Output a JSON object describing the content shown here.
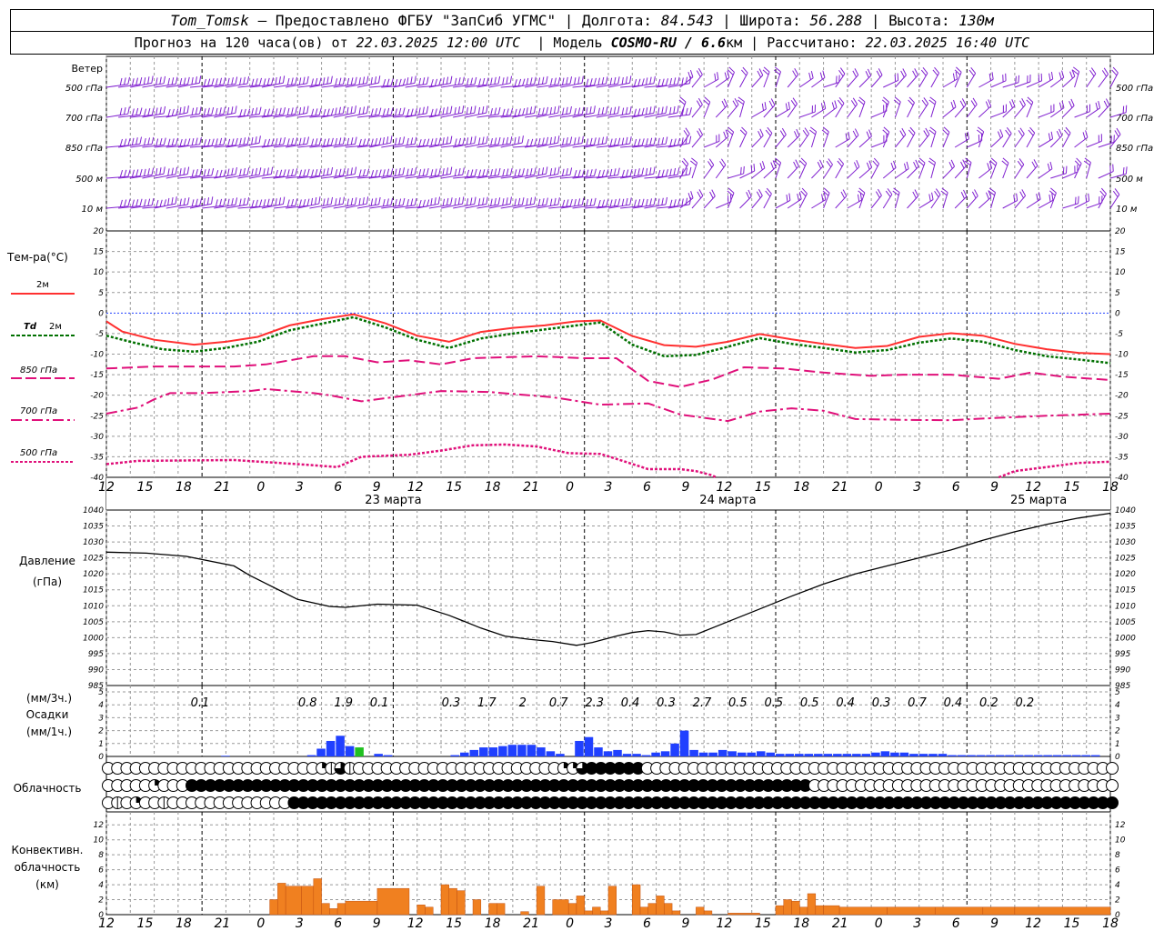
{
  "header": {
    "station": "Tom_Tomsk",
    "provider": " — Предоставлено ФГБУ \"ЗапСиб УГМС\" | Долгота: ",
    "lon": "84.543",
    "lat_label": " | Широта: ",
    "lat": "56.288",
    "alt_label": " | Высота: ",
    "alt": "130м",
    "forecast_label": "Прогноз на 120 часа(ов) от ",
    "forecast_time": "22.03.2025 12:00 UTC",
    "model_label": "  | Модель ",
    "model": "COSMO-RU / 6.6",
    "model_unit": "км",
    "calc_label": " | Рассчитано: ",
    "calc_time": "22.03.2025 16:40 UTC"
  },
  "colors": {
    "t2m": "#ff3030",
    "td2m": "#007000",
    "t850": "#e0107a",
    "t700": "#e0107a",
    "t500": "#e0107a",
    "zero": "#2040ff",
    "barb": "#8020d0",
    "precip": "#2040ff",
    "precip_green": "#20c020",
    "conv": "#f08020",
    "pressure": "#000000"
  },
  "labels": {
    "wind": "Ветер",
    "wind_levels": [
      "500 гПа",
      "700 гПа",
      "850 гПа",
      "500  м",
      "10  м"
    ],
    "temp_title": "Тем-ра(°C)",
    "t2m": "2м",
    "td_prefix": "Td",
    "td2m": "2м",
    "t850": "850 гПа",
    "t700": "700 гПа",
    "t500": "500 гПа",
    "pressure": "Давление",
    "pressure_unit": "(гПа)",
    "precip_top": "(мм/3ч.)",
    "precip": "Осадки",
    "precip_bottom": "(мм/1ч.)",
    "cloud": "Облачность",
    "conv1": "Конвективн.",
    "conv2": "облачность",
    "conv3": "(км)"
  },
  "chart_data": {
    "type": "line",
    "x_hours": "0..126 (hours from 22.03.2025 12:00 UTC)",
    "hour_ticks": [
      "12",
      "15",
      "18",
      "21",
      "0",
      "3",
      "6",
      "9",
      "12",
      "15",
      "18",
      "21",
      "0",
      "3",
      "6",
      "9",
      "12",
      "15",
      "18",
      "21",
      "0",
      "3",
      "6",
      "9",
      "12",
      "15",
      "18"
    ],
    "day_labels": [
      {
        "h": 36,
        "text": "23 марта"
      },
      {
        "h": 78,
        "text": "24 марта"
      },
      {
        "h": 117,
        "text": "25 марта"
      }
    ],
    "temperature": {
      "ylim": [
        -40,
        20
      ],
      "ticks": [
        "20",
        "15",
        "10",
        "5",
        "0",
        "-5",
        "-10",
        "-15",
        "-20",
        "-25",
        "-30",
        "-35",
        "-40"
      ],
      "t2m": [
        [
          0,
          -2
        ],
        [
          2,
          -4.5
        ],
        [
          6,
          -6.5
        ],
        [
          11,
          -7.7
        ],
        [
          15,
          -7
        ],
        [
          19,
          -5.8
        ],
        [
          23,
          -3
        ],
        [
          27,
          -1.5
        ],
        [
          31,
          -0.3
        ],
        [
          35,
          -2.5
        ],
        [
          39,
          -5.5
        ],
        [
          43,
          -7
        ],
        [
          47,
          -4.6
        ],
        [
          51,
          -3.6
        ],
        [
          55,
          -3
        ],
        [
          59,
          -2
        ],
        [
          62,
          -1.8
        ],
        [
          66,
          -5.6
        ],
        [
          70,
          -7.8
        ],
        [
          74,
          -8.2
        ],
        [
          78,
          -7
        ],
        [
          82,
          -5.1
        ],
        [
          86,
          -6.4
        ],
        [
          90,
          -7.5
        ],
        [
          94,
          -8.5
        ],
        [
          98,
          -8
        ],
        [
          102,
          -5.8
        ],
        [
          106,
          -4.9
        ],
        [
          110,
          -5.5
        ],
        [
          114,
          -7.5
        ],
        [
          118,
          -8.8
        ],
        [
          122,
          -9.7
        ],
        [
          126,
          -10
        ]
      ],
      "td2m": [
        [
          0,
          -5.5
        ],
        [
          3,
          -7
        ],
        [
          7,
          -8.8
        ],
        [
          11,
          -9.4
        ],
        [
          15,
          -8.5
        ],
        [
          19,
          -7
        ],
        [
          23,
          -4.2
        ],
        [
          27,
          -2.6
        ],
        [
          31,
          -1
        ],
        [
          35,
          -3.5
        ],
        [
          39,
          -6.5
        ],
        [
          43,
          -8.5
        ],
        [
          47,
          -6.2
        ],
        [
          51,
          -5
        ],
        [
          55,
          -4
        ],
        [
          59,
          -3
        ],
        [
          62,
          -2.3
        ],
        [
          66,
          -7.7
        ],
        [
          70,
          -10.5
        ],
        [
          74,
          -10.2
        ],
        [
          78,
          -8.2
        ],
        [
          82,
          -6.1
        ],
        [
          86,
          -7.5
        ],
        [
          90,
          -8.5
        ],
        [
          94,
          -9.6
        ],
        [
          98,
          -9
        ],
        [
          102,
          -7.2
        ],
        [
          106,
          -6.2
        ],
        [
          110,
          -7
        ],
        [
          114,
          -9
        ],
        [
          118,
          -10.5
        ],
        [
          122,
          -11.3
        ],
        [
          126,
          -12.2
        ]
      ],
      "t850": [
        [
          0,
          -13.5
        ],
        [
          6,
          -13
        ],
        [
          16,
          -13
        ],
        [
          20,
          -12.5
        ],
        [
          26,
          -10.5
        ],
        [
          30,
          -10.5
        ],
        [
          34,
          -12
        ],
        [
          38,
          -11.5
        ],
        [
          42,
          -12.5
        ],
        [
          46,
          -11
        ],
        [
          54,
          -10.5
        ],
        [
          60,
          -11
        ],
        [
          64,
          -11
        ],
        [
          68,
          -16.5
        ],
        [
          72,
          -18
        ],
        [
          76,
          -16.2
        ],
        [
          80,
          -13.2
        ],
        [
          85,
          -13.5
        ],
        [
          90,
          -14.5
        ],
        [
          96,
          -15.3
        ],
        [
          100,
          -15
        ],
        [
          106,
          -15
        ],
        [
          112,
          -16
        ],
        [
          116,
          -14.5
        ],
        [
          120,
          -15.5
        ],
        [
          126,
          -16.3
        ]
      ],
      "t700": [
        [
          0,
          -24.5
        ],
        [
          4,
          -23
        ],
        [
          6,
          -21
        ],
        [
          8,
          -19.5
        ],
        [
          12,
          -19.5
        ],
        [
          18,
          -19
        ],
        [
          20,
          -18.5
        ],
        [
          26,
          -19.5
        ],
        [
          28,
          -20
        ],
        [
          32,
          -21.5
        ],
        [
          36,
          -20.5
        ],
        [
          42,
          -19
        ],
        [
          48,
          -19.2
        ],
        [
          56,
          -20.5
        ],
        [
          62,
          -22.3
        ],
        [
          68,
          -22
        ],
        [
          72,
          -24.7
        ],
        [
          78,
          -26.3
        ],
        [
          82,
          -24
        ],
        [
          86,
          -23.2
        ],
        [
          90,
          -23.8
        ],
        [
          94,
          -25.8
        ],
        [
          100,
          -26
        ],
        [
          106,
          -26.1
        ],
        [
          112,
          -25.5
        ],
        [
          118,
          -25
        ],
        [
          126,
          -24.5
        ]
      ],
      "t500": [
        [
          0,
          -36.8
        ],
        [
          4,
          -36
        ],
        [
          16,
          -35.8
        ],
        [
          24,
          -36.8
        ],
        [
          29,
          -37.5
        ],
        [
          32,
          -35
        ],
        [
          38,
          -34.5
        ],
        [
          42,
          -33.5
        ],
        [
          46,
          -32.2
        ],
        [
          50,
          -32
        ],
        [
          54,
          -32.5
        ],
        [
          58,
          -34.1
        ],
        [
          62,
          -34.3
        ],
        [
          64,
          -35.5
        ],
        [
          68,
          -38
        ],
        [
          72,
          -38
        ],
        [
          74,
          -38.5
        ],
        [
          76,
          -39.5
        ],
        [
          76.5,
          -40
        ]
      ],
      "t500_tail": [
        [
          112,
          -40
        ],
        [
          114,
          -38.5
        ],
        [
          118,
          -37.5
        ],
        [
          122,
          -36.5
        ],
        [
          126,
          -36.2
        ]
      ]
    },
    "pressure": {
      "ylim": [
        985,
        1040
      ],
      "ticks": [
        "1040",
        "1035",
        "1030",
        "1025",
        "1020",
        "1015",
        "1010",
        "1005",
        "1000",
        "995",
        "990",
        "985"
      ],
      "values": [
        [
          0,
          1026.8
        ],
        [
          5,
          1026.5
        ],
        [
          10,
          1025.5
        ],
        [
          16,
          1022.5
        ],
        [
          18,
          1019.5
        ],
        [
          20,
          1017
        ],
        [
          22,
          1014.5
        ],
        [
          24,
          1012
        ],
        [
          28,
          1009.8
        ],
        [
          30,
          1009.5
        ],
        [
          34,
          1010.5
        ],
        [
          39,
          1010.2
        ],
        [
          43,
          1007
        ],
        [
          47,
          1003
        ],
        [
          50,
          1000.5
        ],
        [
          53,
          999.5
        ],
        [
          56,
          998.8
        ],
        [
          59,
          997.6
        ],
        [
          61,
          998.5
        ],
        [
          64,
          1000.5
        ],
        [
          66,
          1001.6
        ],
        [
          68,
          1002.2
        ],
        [
          70,
          1001.8
        ],
        [
          72,
          1000.8
        ],
        [
          74,
          1001
        ],
        [
          78,
          1005
        ],
        [
          82,
          1009
        ],
        [
          86,
          1013
        ],
        [
          90,
          1016.8
        ],
        [
          94,
          1020
        ],
        [
          98,
          1022.5
        ],
        [
          102,
          1025
        ],
        [
          106,
          1027.5
        ],
        [
          110,
          1030.5
        ],
        [
          114,
          1033.2
        ],
        [
          118,
          1035.5
        ],
        [
          122,
          1037.5
        ],
        [
          126,
          1039
        ]
      ]
    },
    "precip": {
      "ylim": [
        0,
        5
      ],
      "ticks": [
        "5",
        "4",
        "3",
        "2",
        "1",
        "0"
      ],
      "labels": [
        {
          "h": 7.5,
          "v": "0.1"
        },
        {
          "h": 16.5,
          "v": "0.8"
        },
        {
          "h": 19.5,
          "v": "1.9"
        },
        {
          "h": 22.5,
          "v": "0.1"
        },
        {
          "h": 28.5,
          "v": "0.3"
        },
        {
          "h": 31.5,
          "v": "1.7"
        },
        {
          "h": 34.5,
          "v": "2"
        },
        {
          "h": 37.5,
          "v": "0.7"
        },
        {
          "h": 40.5,
          "v": "2.3"
        },
        {
          "h": 43.5,
          "v": "0.4"
        },
        {
          "h": 46.5,
          "v": "0.3"
        },
        {
          "h": 49.5,
          "v": "2.7"
        },
        {
          "h": 52.5,
          "v": "0.5"
        },
        {
          "h": 55.5,
          "v": "0.5"
        },
        {
          "h": 58.5,
          "v": "0.5"
        },
        {
          "h": 61.5,
          "v": "0.4"
        },
        {
          "h": 64.5,
          "v": "0.3"
        },
        {
          "h": 67.5,
          "v": "0.7"
        },
        {
          "h": 70.5,
          "v": "0.4"
        },
        {
          "h": 73.5,
          "v": "0.2"
        },
        {
          "h": 76.5,
          "v": "0.2"
        }
      ],
      "hourly": [
        0,
        0,
        0,
        0,
        0,
        0,
        0,
        0,
        0,
        0,
        0,
        0,
        0.05,
        0,
        0,
        0,
        0,
        0,
        0,
        0,
        0,
        0.1,
        0.6,
        1.2,
        1.6,
        0.8,
        0.7,
        0,
        0.2,
        0.1,
        0,
        0,
        0,
        0,
        0,
        0,
        0.1,
        0.3,
        0.5,
        0.7,
        0.7,
        0.8,
        0.9,
        0.9,
        0.9,
        0.7,
        0.4,
        0.2,
        0,
        1.2,
        1.5,
        0.7,
        0.4,
        0.5,
        0.2,
        0.2,
        0.1,
        0.3,
        0.4,
        1.0,
        2.0,
        0.5,
        0.3,
        0.3,
        0.5,
        0.4,
        0.3,
        0.3,
        0.4,
        0.3,
        0.2,
        0.2,
        0.2,
        0.2,
        0.2,
        0.2,
        0.2,
        0.2,
        0.2,
        0.2,
        0.3,
        0.4,
        0.3,
        0.3,
        0.2,
        0.2,
        0.2,
        0.2,
        0.1,
        0.1,
        0.1,
        0.1,
        0.1,
        0.1,
        0.1,
        0.1,
        0.1,
        0.1,
        0.1,
        0.1,
        0.1,
        0.1,
        0.1,
        0.1
      ],
      "green_hour": 26
    },
    "cloud_rows": 3,
    "cloud": [
      "0000000000000000000000012320000000000000000000000113444444000000000000000000000000000000000000000000000000000",
      "0000010004444444444444444444444444444444444444444444444444444444444444444444000000000000000000000000000000000",
      "0201002000000000000044444444444444444444444444444444444444444444444444444444444444444444444444444444444444444"
    ],
    "convective": {
      "ylim": [
        0,
        13
      ],
      "ticks": [
        "12",
        "10",
        "8",
        "6",
        "4",
        "2",
        "0"
      ],
      "bars": [
        [
          20.5,
          21.5,
          2
        ],
        [
          21.5,
          22.5,
          4.2
        ],
        [
          22.5,
          24.5,
          3.8
        ],
        [
          24.5,
          26,
          3.8
        ],
        [
          26,
          27,
          4.8
        ],
        [
          27,
          28,
          1.5
        ],
        [
          28,
          29,
          0.8
        ],
        [
          29,
          30,
          1.5
        ],
        [
          30,
          34,
          1.8
        ],
        [
          34,
          38,
          3.5
        ],
        [
          39,
          40,
          1.3
        ],
        [
          40,
          41,
          1
        ],
        [
          42,
          43,
          4
        ],
        [
          43,
          44,
          3.5
        ],
        [
          44,
          45,
          3.2
        ],
        [
          46,
          47,
          2
        ],
        [
          48,
          49,
          1.5
        ],
        [
          49,
          50,
          1.5
        ],
        [
          52,
          53,
          0.4
        ],
        [
          54,
          55,
          3.8
        ],
        [
          56,
          58,
          2
        ],
        [
          58,
          59,
          1.5
        ],
        [
          59,
          60,
          2.5
        ],
        [
          60,
          61,
          0.5
        ],
        [
          61,
          62,
          1
        ],
        [
          62,
          63,
          0.5
        ],
        [
          63,
          64,
          3.8
        ],
        [
          66,
          67,
          4
        ],
        [
          67,
          68,
          1
        ],
        [
          68,
          69,
          1.5
        ],
        [
          69,
          70,
          2.5
        ],
        [
          70,
          71,
          1.5
        ],
        [
          71,
          72,
          0.5
        ],
        [
          74,
          75,
          1
        ],
        [
          75,
          76,
          0.5
        ],
        [
          78,
          82,
          0.2
        ],
        [
          84,
          85,
          1.2
        ],
        [
          85,
          86,
          2
        ],
        [
          86,
          87,
          1.8
        ],
        [
          87,
          88,
          1
        ],
        [
          88,
          89,
          2.8
        ],
        [
          89,
          90,
          1.2
        ],
        [
          90,
          92,
          1.2
        ],
        [
          92,
          98,
          1
        ],
        [
          98,
          104,
          1
        ],
        [
          104,
          110,
          1
        ],
        [
          110,
          114,
          1
        ],
        [
          114,
          126,
          1
        ]
      ]
    },
    "wind_barbs": "feather-coded wind direction/speed at 500 гПа, 700 гПа, 850 гПа, 500 м and 10 м every hour"
  }
}
